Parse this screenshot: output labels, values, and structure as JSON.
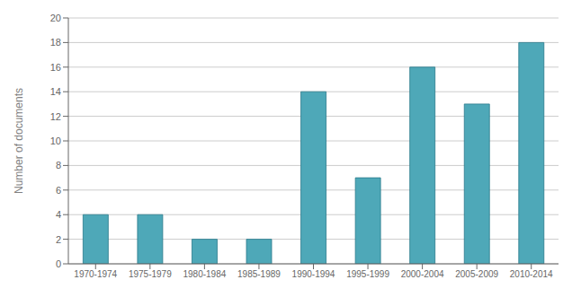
{
  "chart_data": {
    "type": "bar",
    "categories": [
      "1970-1974",
      "1975-1979",
      "1980-1984",
      "1985-1989",
      "1990-1994",
      "1995-1999",
      "2000-2004",
      "2005-2009",
      "2010-2014"
    ],
    "values": [
      4,
      4,
      2,
      2,
      14,
      7,
      16,
      13,
      18
    ],
    "color": "#4ea8b8",
    "ylabel": "Number of documents",
    "ylim": [
      0,
      20
    ],
    "yticks": [
      0,
      2,
      4,
      6,
      8,
      10,
      12,
      14,
      16,
      18,
      20
    ],
    "grid": true
  }
}
